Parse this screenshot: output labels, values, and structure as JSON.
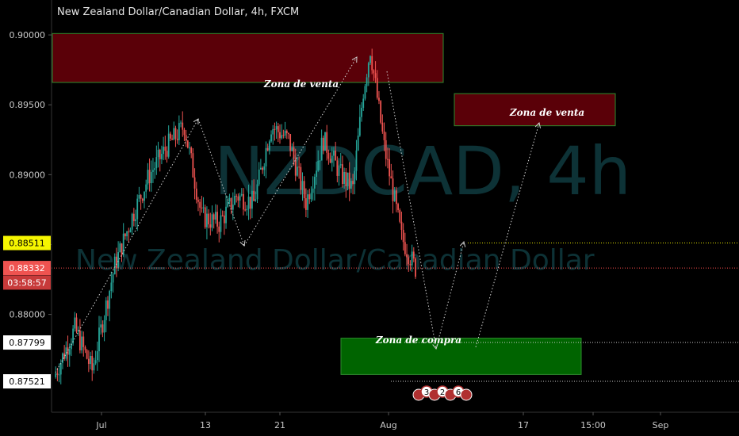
{
  "header": {
    "title": "New Zealand Dollar/Canadian Dollar, 4h, FXCM"
  },
  "watermark": {
    "symbol": "NZDCAD, 4h",
    "name": "New Zealand Dollar/Canadian Dollar"
  },
  "colors": {
    "up": "#26a69a",
    "down": "#ef5350",
    "sell_zone": "#5a0008",
    "buy_zone": "#006400",
    "zone_border": "#2e8b2e",
    "yellow_line": "#e6e600",
    "red_line": "#ff4d4d"
  },
  "chart_data": {
    "type": "candlestick",
    "ylim": [
      0.873,
      0.9025
    ],
    "y_ticks": [
      0.88,
      0.885,
      0.89,
      0.895,
      0.9
    ],
    "x_ticks": [
      "Jul",
      "13",
      "21",
      "Aug",
      "17",
      "15:00",
      "Sep"
    ],
    "price_tags": [
      {
        "label": "0.88511",
        "value": 0.88511,
        "style": "yellow"
      },
      {
        "label": "0.88332",
        "value": 0.88332,
        "style": "red"
      },
      {
        "label": "03:58:57",
        "value": 0.88228,
        "style": "red-dark"
      },
      {
        "label": "0.87799",
        "value": 0.87799,
        "style": "white"
      },
      {
        "label": "0.87521",
        "value": 0.87521,
        "style": "white"
      }
    ],
    "zones": [
      {
        "label": "Zona de venta",
        "kind": "sell",
        "y_top": 0.9001,
        "y_bottom": 0.8966
      },
      {
        "label": "Zona de venta",
        "kind": "sell",
        "y_top": 0.8958,
        "y_bottom": 0.8935
      },
      {
        "label": "Zona de compra",
        "kind": "buy",
        "y_top": 0.8783,
        "y_bottom": 0.8757
      }
    ],
    "event_badges": [
      "3",
      "2",
      "6"
    ],
    "keypoints": [
      {
        "t": 0,
        "p": 0.8755
      },
      {
        "t": 12,
        "p": 0.879
      },
      {
        "t": 22,
        "p": 0.876
      },
      {
        "t": 35,
        "p": 0.8835
      },
      {
        "t": 45,
        "p": 0.887
      },
      {
        "t": 55,
        "p": 0.89
      },
      {
        "t": 65,
        "p": 0.892
      },
      {
        "t": 75,
        "p": 0.8935
      },
      {
        "t": 85,
        "p": 0.887
      },
      {
        "t": 95,
        "p": 0.8865
      },
      {
        "t": 105,
        "p": 0.8885
      },
      {
        "t": 115,
        "p": 0.888
      },
      {
        "t": 125,
        "p": 0.8935
      },
      {
        "t": 135,
        "p": 0.8925
      },
      {
        "t": 145,
        "p": 0.888
      },
      {
        "t": 155,
        "p": 0.8925
      },
      {
        "t": 165,
        "p": 0.89
      },
      {
        "t": 172,
        "p": 0.889
      },
      {
        "t": 178,
        "p": 0.896
      },
      {
        "t": 182,
        "p": 0.899
      },
      {
        "t": 190,
        "p": 0.892
      },
      {
        "t": 200,
        "p": 0.8855
      },
      {
        "t": 208,
        "p": 0.8833
      }
    ]
  }
}
